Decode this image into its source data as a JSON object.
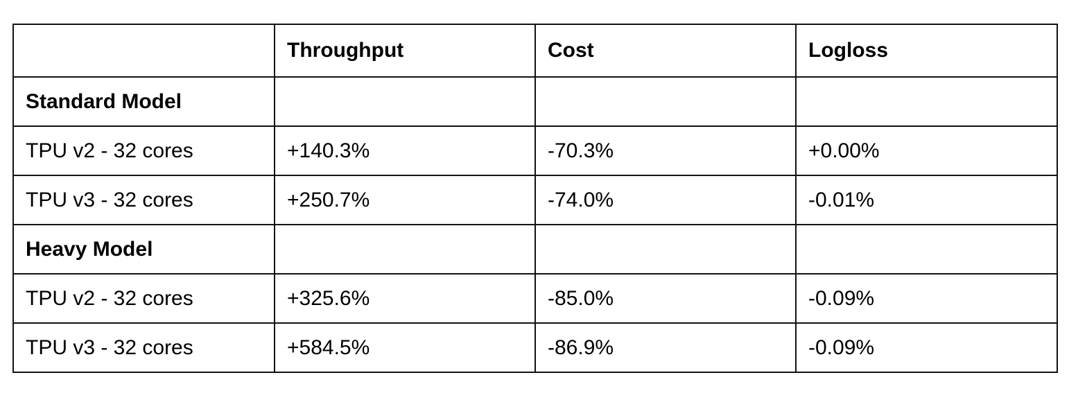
{
  "table": {
    "columns": [
      "",
      "Throughput",
      "Cost",
      "Logloss"
    ],
    "rows": [
      {
        "type": "group",
        "label": "Standard Model",
        "cells": [
          "",
          "",
          ""
        ]
      },
      {
        "type": "data",
        "label": "TPU v2 - 32 cores",
        "cells": [
          "+140.3%",
          "-70.3%",
          "+0.00%"
        ]
      },
      {
        "type": "data",
        "label": "TPU v3 - 32 cores",
        "cells": [
          "+250.7%",
          "-74.0%",
          "-0.01%"
        ]
      },
      {
        "type": "group",
        "label": "Heavy Model",
        "cells": [
          "",
          "",
          ""
        ]
      },
      {
        "type": "data",
        "label": "TPU v2 - 32 cores",
        "cells": [
          "+325.6%",
          "-85.0%",
          "-0.09%"
        ]
      },
      {
        "type": "data",
        "label": "TPU v3 - 32 cores",
        "cells": [
          "+584.5%",
          "-86.9%",
          "-0.09%"
        ]
      }
    ]
  }
}
